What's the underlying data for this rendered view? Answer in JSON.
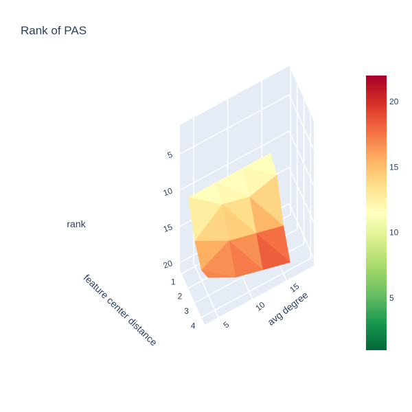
{
  "chart_data": {
    "type": "surface",
    "title": "Rank of PAS",
    "x_axis": {
      "title": "feature center distance",
      "ticks": [
        "1",
        "2",
        "3",
        "4"
      ],
      "range": [
        0.75,
        4.5
      ]
    },
    "y_axis": {
      "title": "avg degree",
      "ticks": [
        "5",
        "10",
        "15"
      ],
      "range": [
        3,
        19
      ]
    },
    "z_axis": {
      "title": "rank",
      "ticks": [
        "5",
        "10",
        "15",
        "20"
      ],
      "range": [
        1,
        21
      ],
      "reversed": true
    },
    "x": [
      1,
      2,
      3,
      4
    ],
    "y": [
      4,
      8,
      12,
      16
    ],
    "z": [
      [
        11,
        15,
        17,
        16
      ],
      [
        11,
        12,
        15,
        18
      ],
      [
        11,
        13,
        16,
        19
      ],
      [
        11,
        12,
        17,
        20
      ]
    ],
    "colorscale": {
      "name": "RdYlGn (reversed)",
      "min": 1,
      "max": 22,
      "ticks": [
        "5",
        "10",
        "15",
        "20"
      ],
      "colors": [
        "#006837",
        "#1a9850",
        "#66bd63",
        "#a6d96a",
        "#d9ef8b",
        "#ffffbf",
        "#fee08b",
        "#fdae61",
        "#f46d43",
        "#d73027",
        "#a50026"
      ]
    },
    "scene_background": "#e5ecf6",
    "grid": true
  }
}
